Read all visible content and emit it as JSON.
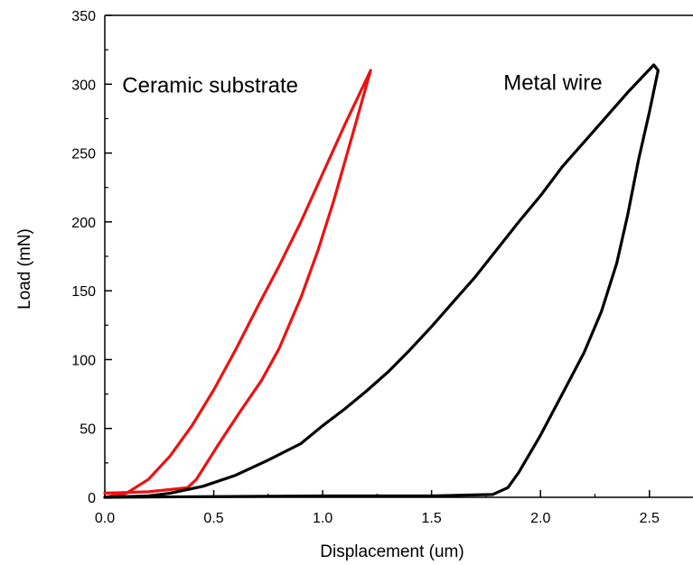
{
  "chart_data": {
    "type": "line",
    "xlabel": "Displacement (um)",
    "ylabel": "Load (mN)",
    "xlim": [
      0.0,
      2.7
    ],
    "ylim": [
      0,
      350
    ],
    "x_ticks": [
      0.0,
      0.5,
      1.0,
      1.5,
      2.0,
      2.5
    ],
    "x_tick_labels": [
      "0.0",
      "0.5",
      "1.0",
      "1.5",
      "2.0",
      "2.5"
    ],
    "y_ticks": [
      0,
      50,
      100,
      150,
      200,
      250,
      300,
      350
    ],
    "y_tick_labels": [
      "0",
      "50",
      "100",
      "150",
      "200",
      "250",
      "300",
      "350"
    ],
    "grid": false,
    "annotations": [
      {
        "text": "Ceramic substrate",
        "x": 0.08,
        "y": 294
      },
      {
        "text": "Metal wire",
        "x": 1.83,
        "y": 296
      }
    ],
    "series": [
      {
        "color": "#ee1111",
        "points": [
          [
            0.0,
            0
          ],
          [
            0.1,
            3
          ],
          [
            0.2,
            13
          ],
          [
            0.3,
            30
          ],
          [
            0.4,
            52
          ],
          [
            0.5,
            78
          ],
          [
            0.6,
            107
          ],
          [
            0.7,
            138
          ],
          [
            0.8,
            168
          ],
          [
            0.9,
            200
          ],
          [
            1.0,
            235
          ],
          [
            1.1,
            270
          ],
          [
            1.22,
            310
          ],
          [
            1.14,
            265
          ],
          [
            1.05,
            215
          ],
          [
            0.98,
            180
          ],
          [
            0.9,
            145
          ],
          [
            0.8,
            108
          ],
          [
            0.72,
            85
          ],
          [
            0.62,
            62
          ],
          [
            0.52,
            38
          ],
          [
            0.42,
            13
          ],
          [
            0.38,
            7
          ],
          [
            0.2,
            4
          ],
          [
            0.0,
            3
          ]
        ]
      },
      {
        "color": "#000000",
        "points": [
          [
            0.0,
            0
          ],
          [
            0.2,
            1
          ],
          [
            0.3,
            3
          ],
          [
            0.45,
            8
          ],
          [
            0.6,
            16
          ],
          [
            0.75,
            27
          ],
          [
            0.9,
            39
          ],
          [
            1.0,
            52
          ],
          [
            1.1,
            64
          ],
          [
            1.2,
            77
          ],
          [
            1.3,
            91
          ],
          [
            1.4,
            107
          ],
          [
            1.5,
            124
          ],
          [
            1.6,
            142
          ],
          [
            1.7,
            160
          ],
          [
            1.8,
            180
          ],
          [
            1.9,
            200
          ],
          [
            2.0,
            219
          ],
          [
            2.1,
            240
          ],
          [
            2.2,
            258
          ],
          [
            2.3,
            276
          ],
          [
            2.4,
            294
          ],
          [
            2.52,
            314
          ],
          [
            2.54,
            310
          ],
          [
            2.5,
            280
          ],
          [
            2.45,
            245
          ],
          [
            2.4,
            205
          ],
          [
            2.35,
            170
          ],
          [
            2.28,
            135
          ],
          [
            2.2,
            105
          ],
          [
            2.1,
            75
          ],
          [
            2.0,
            45
          ],
          [
            1.9,
            18
          ],
          [
            1.85,
            7
          ],
          [
            1.78,
            2
          ],
          [
            1.5,
            1
          ],
          [
            1.0,
            1
          ],
          [
            0.5,
            0.5
          ],
          [
            0.0,
            0
          ]
        ]
      }
    ]
  }
}
